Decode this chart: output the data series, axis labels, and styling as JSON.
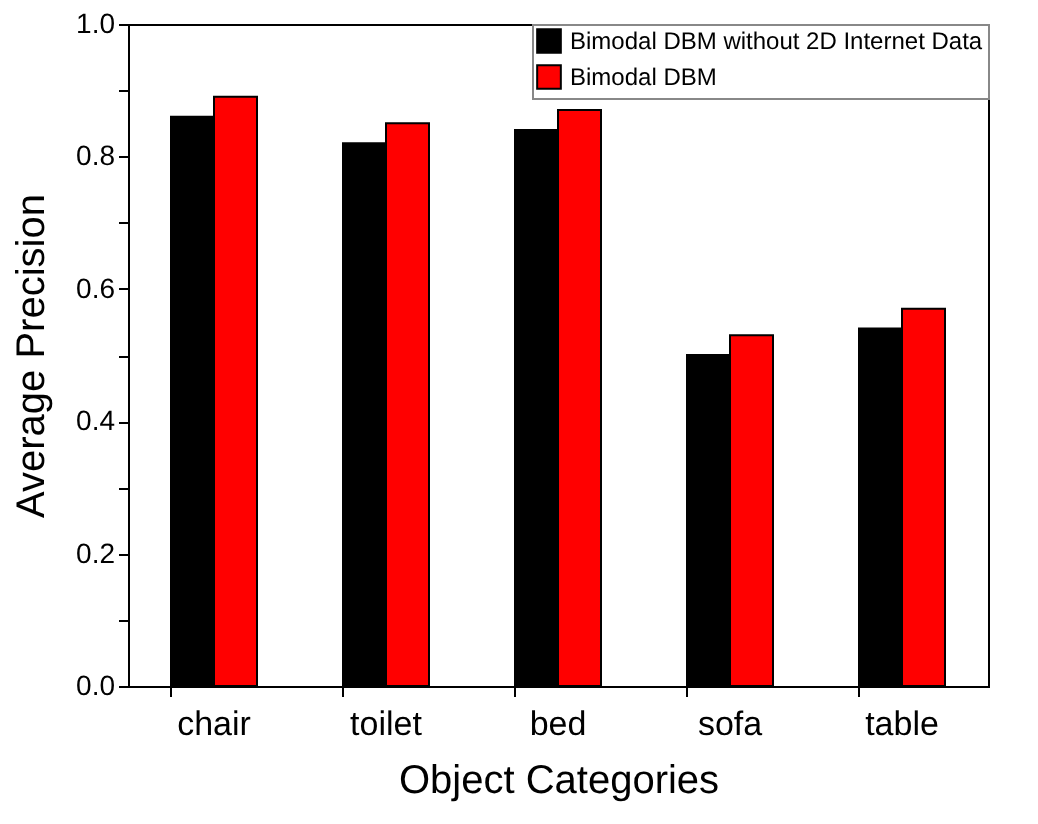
{
  "chart_data": {
    "type": "bar",
    "xlabel": "Object Categories",
    "ylabel": "Average Precision",
    "categories": [
      "chair",
      "toilet",
      "bed",
      "sofa",
      "table"
    ],
    "series": [
      {
        "name": "Bimodal DBM without 2D Internet Data",
        "color": "#000000",
        "values": [
          0.86,
          0.82,
          0.84,
          0.5,
          0.54
        ]
      },
      {
        "name": "Bimodal DBM",
        "color": "#ff0000",
        "values": [
          0.89,
          0.85,
          0.87,
          0.53,
          0.57
        ]
      }
    ],
    "ylim": [
      0,
      1.0
    ],
    "yticks": [
      {
        "value": 0,
        "label": "0.0"
      },
      {
        "value": 0.1,
        "label": null
      },
      {
        "value": 0.2,
        "label": "0.2"
      },
      {
        "value": 0.3,
        "label": null
      },
      {
        "value": 0.4,
        "label": "0.4"
      },
      {
        "value": 0.5,
        "label": null
      },
      {
        "value": 0.6,
        "label": "0.6"
      },
      {
        "value": 0.7,
        "label": null
      },
      {
        "value": 0.8,
        "label": "0.8"
      },
      {
        "value": 0.9,
        "label": null
      },
      {
        "value": 1.0,
        "label": "1.0"
      }
    ],
    "grid": false,
    "legend": "top right"
  }
}
